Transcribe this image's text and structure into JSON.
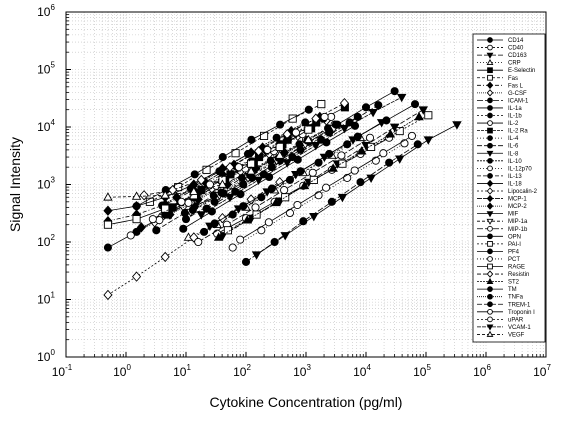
{
  "chart_data": {
    "type": "scatter",
    "title": "",
    "xlabel": "Cytokine Concentration (pg/ml)",
    "ylabel": "Signal Intensity",
    "xscale": "log",
    "yscale": "log",
    "xlim": [
      0.1,
      10000000
    ],
    "ylim": [
      1,
      1000000
    ],
    "grid": true,
    "legend_position": "right",
    "x_tick_labels": [
      {
        "base": "10",
        "exp": "-1"
      },
      {
        "base": "10",
        "exp": "0"
      },
      {
        "base": "10",
        "exp": "1"
      },
      {
        "base": "10",
        "exp": "2"
      },
      {
        "base": "10",
        "exp": "3"
      },
      {
        "base": "10",
        "exp": "4"
      },
      {
        "base": "10",
        "exp": "5"
      },
      {
        "base": "10",
        "exp": "6"
      },
      {
        "base": "10",
        "exp": "7"
      }
    ],
    "y_tick_labels": [
      {
        "base": "10",
        "exp": "0"
      },
      {
        "base": "10",
        "exp": "1"
      },
      {
        "base": "10",
        "exp": "2"
      },
      {
        "base": "10",
        "exp": "3"
      },
      {
        "base": "10",
        "exp": "4"
      },
      {
        "base": "10",
        "exp": "5"
      },
      {
        "base": "10",
        "exp": "6"
      }
    ],
    "series": [
      {
        "name": "CD14",
        "marker": "circle",
        "filled": true,
        "dash": "",
        "x": [
          14,
          42,
          126,
          370,
          1111,
          3333,
          10000,
          30000
        ],
        "y": [
          420,
          700,
          1300,
          2600,
          5500,
          11000,
          22000,
          42000
        ]
      },
      {
        "name": "CD40",
        "marker": "circle",
        "filled": false,
        "dash": "2,2",
        "x": [
          4,
          12,
          37,
          111,
          333,
          1000,
          3000
        ],
        "y": [
          280,
          500,
          900,
          1700,
          3200,
          6000,
          11000
        ]
      },
      {
        "name": "CD163",
        "marker": "triangle-down",
        "filled": true,
        "dash": "5,2",
        "x": [
          41,
          123,
          370,
          1111,
          3333,
          10000,
          30000,
          90000
        ],
        "y": [
          130,
          260,
          520,
          1100,
          2300,
          4800,
          10000,
          20000
        ]
      },
      {
        "name": "CRP",
        "marker": "triangle-up",
        "filled": false,
        "dash": "1,2",
        "x": [
          11,
          33,
          100,
          300,
          900,
          2700,
          8100
        ],
        "y": [
          120,
          200,
          400,
          800,
          1600,
          3200,
          6500
        ]
      },
      {
        "name": "E-Selectin",
        "marker": "square",
        "filled": true,
        "dash": "",
        "x": [
          6,
          18,
          55,
          165,
          494,
          1481,
          4444
        ],
        "y": [
          400,
          800,
          1500,
          3000,
          6000,
          12000,
          22000
        ]
      },
      {
        "name": "Fas",
        "marker": "square",
        "filled": false,
        "dash": "3,2",
        "x": [
          2.5,
          7.4,
          22,
          67,
          200,
          600,
          1800
        ],
        "y": [
          500,
          900,
          1800,
          3500,
          7000,
          14000,
          25000
        ]
      },
      {
        "name": "Fas L",
        "marker": "diamond",
        "filled": true,
        "dash": "4,2,1,2",
        "x": [
          0.5,
          1.5,
          4.5,
          13.5,
          40.5
        ],
        "y": [
          230,
          300,
          450,
          800,
          1500
        ]
      },
      {
        "name": "G-CSF",
        "marker": "diamond",
        "filled": false,
        "dash": "1,1",
        "x": [
          3,
          9,
          27,
          81,
          243,
          729,
          2187
        ],
        "y": [
          220,
          420,
          850,
          1700,
          3400,
          7000,
          13000
        ]
      },
      {
        "name": "ICAM-1",
        "marker": "circle",
        "filled": true,
        "dash": "6,2",
        "x": [
          100,
          300,
          900,
          2700,
          8100,
          24300,
          72900
        ],
        "y": [
          45,
          100,
          230,
          500,
          1100,
          2400,
          5000
        ]
      },
      {
        "name": "IL-1a",
        "marker": "circle",
        "filled": true,
        "dash": "",
        "x": [
          1.5,
          4.6,
          14,
          41,
          123,
          370,
          1111
        ],
        "y": [
          420,
          800,
          1500,
          3000,
          6000,
          11000,
          20000
        ]
      },
      {
        "name": "IL-1b",
        "marker": "circle",
        "filled": true,
        "dash": "2,2",
        "x": [
          20,
          60,
          180,
          540,
          1620,
          4860
        ],
        "y": [
          150,
          300,
          600,
          1200,
          2400,
          5000
        ]
      },
      {
        "name": "IL-2",
        "marker": "circle",
        "filled": false,
        "dash": "",
        "x": [
          33,
          100,
          300,
          900,
          2700,
          8100,
          24300
        ],
        "y": [
          140,
          260,
          500,
          950,
          1800,
          3400,
          6500
        ]
      },
      {
        "name": "IL-2 Ra",
        "marker": "square",
        "filled": true,
        "dash": "3,1",
        "x": [
          5,
          15,
          45,
          135,
          405,
          1215
        ],
        "y": [
          300,
          600,
          1200,
          2500,
          5000,
          9500
        ]
      },
      {
        "name": "IL-4",
        "marker": "circle",
        "filled": true,
        "dash": "1,2",
        "x": [
          8,
          24,
          72,
          216,
          648,
          1944
        ],
        "y": [
          500,
          1000,
          2000,
          4000,
          8000,
          14000
        ]
      },
      {
        "name": "IL-6",
        "marker": "circle",
        "filled": true,
        "dash": "5,2",
        "x": [
          3.2,
          9.6,
          29,
          86,
          259,
          778,
          2333
        ],
        "y": [
          160,
          320,
          650,
          1300,
          2600,
          5000,
          9500
        ]
      },
      {
        "name": "IL-8",
        "marker": "triangle-down",
        "filled": true,
        "dash": "",
        "x": [
          25,
          75,
          225,
          675,
          2025,
          6075,
          18225
        ],
        "y": [
          190,
          380,
          750,
          1500,
          3000,
          6000,
          12000
        ]
      },
      {
        "name": "IL-10",
        "marker": "circle",
        "filled": true,
        "dash": "2,1",
        "x": [
          4,
          12,
          36,
          108,
          324,
          972
        ],
        "y": [
          430,
          850,
          1700,
          3400,
          6500,
          12000
        ]
      },
      {
        "name": "IL-12p70",
        "marker": "circle",
        "filled": false,
        "dash": "1,2",
        "x": [
          60,
          180,
          540,
          1620,
          4860,
          14580,
          43740
        ],
        "y": [
          80,
          160,
          320,
          650,
          1300,
          2600,
          5200
        ]
      },
      {
        "name": "IL-13",
        "marker": "circle",
        "filled": true,
        "dash": "4,2",
        "x": [
          10,
          30,
          90,
          270,
          810,
          2430,
          7290
        ],
        "y": [
          250,
          500,
          1000,
          2000,
          4000,
          8000,
          15000
        ]
      },
      {
        "name": "IL-18",
        "marker": "diamond",
        "filled": true,
        "dash": "",
        "x": [
          0.5,
          1.5,
          4.5,
          13.5,
          40.5,
          121.5
        ],
        "y": [
          350,
          420,
          600,
          1000,
          1900,
          3600
        ]
      },
      {
        "name": "Lipocalin-2",
        "marker": "diamond",
        "filled": false,
        "dash": "2,2",
        "x": [
          0.5,
          1.5,
          4.5,
          13.5,
          40.5,
          121.5,
          364.5
        ],
        "y": [
          12,
          25,
          55,
          120,
          260,
          550,
          1100
        ]
      },
      {
        "name": "MCP-1",
        "marker": "diamond",
        "filled": true,
        "dash": "5,1",
        "x": [
          7,
          21,
          63,
          189,
          567,
          1701
        ],
        "y": [
          600,
          1100,
          2200,
          4400,
          8500,
          15000
        ]
      },
      {
        "name": "MCP-2",
        "marker": "diamond",
        "filled": true,
        "dash": "1,1",
        "x": [
          1.8,
          5.4,
          16,
          49,
          146,
          437
        ],
        "y": [
          180,
          300,
          550,
          1000,
          1900,
          3600
        ]
      },
      {
        "name": "MIF",
        "marker": "triangle-down",
        "filled": true,
        "dash": "",
        "x": [
          150,
          450,
          1350,
          4050,
          12150,
          36450,
          109350,
          328050
        ],
        "y": [
          60,
          130,
          280,
          600,
          1300,
          2800,
          6000,
          11000
        ]
      },
      {
        "name": "MIP-1a",
        "marker": "triangle-down",
        "filled": false,
        "dash": "3,2",
        "x": [
          12,
          36,
          108,
          324,
          972,
          2916
        ],
        "y": [
          330,
          650,
          1300,
          2600,
          5000,
          9500
        ]
      },
      {
        "name": "MIP-1b",
        "marker": "circle",
        "filled": false,
        "dash": "6,2",
        "x": [
          16,
          48,
          144,
          432,
          1296,
          3888,
          11664
        ],
        "y": [
          100,
          200,
          400,
          800,
          1600,
          3200,
          6500
        ]
      },
      {
        "name": "OPN",
        "marker": "circle",
        "filled": true,
        "dash": "",
        "x": [
          30,
          90,
          270,
          810,
          2430,
          7290,
          21870,
          65610
        ],
        "y": [
          210,
          420,
          850,
          1700,
          3400,
          6800,
          13000,
          25000
        ]
      },
      {
        "name": "PAI-I",
        "marker": "square",
        "filled": false,
        "dash": "2,2",
        "x": [
          50,
          150,
          450,
          1350,
          4050,
          12150,
          36450,
          109350
        ],
        "y": [
          160,
          300,
          600,
          1200,
          2300,
          4500,
          8500,
          16000
        ]
      },
      {
        "name": "PF4",
        "marker": "circle",
        "filled": true,
        "dash": "",
        "x": [
          0.5,
          1.5,
          4.5,
          13.5,
          40.5,
          121.5,
          364.5
        ],
        "y": [
          80,
          150,
          300,
          600,
          1200,
          2500,
          5000
        ]
      },
      {
        "name": "PCT",
        "marker": "circle",
        "filled": false,
        "dash": "1,2",
        "x": [
          1.2,
          3.6,
          11,
          32,
          97,
          292,
          875,
          2625
        ],
        "y": [
          130,
          240,
          480,
          950,
          1900,
          3800,
          7500,
          15000
        ]
      },
      {
        "name": "RAGE",
        "marker": "square",
        "filled": false,
        "dash": "",
        "x": [
          0.5,
          1.5,
          4.5,
          13.5,
          40.5,
          121.5,
          364.5,
          1093.5
        ],
        "y": [
          200,
          250,
          380,
          650,
          1200,
          2300,
          4500,
          9000
        ]
      },
      {
        "name": "Resistin",
        "marker": "diamond",
        "filled": false,
        "dash": "4,2",
        "x": [
          2,
          6,
          18,
          54,
          162,
          486,
          1458,
          4374
        ],
        "y": [
          650,
          800,
          1200,
          2000,
          3800,
          7500,
          14000,
          26000
        ]
      },
      {
        "name": "ST2",
        "marker": "triangle-up",
        "filled": true,
        "dash": "2,1",
        "x": [
          35,
          105,
          315,
          945,
          2835,
          8505,
          25515,
          76545
        ],
        "y": [
          120,
          240,
          480,
          950,
          1900,
          3800,
          7500,
          15000
        ]
      },
      {
        "name": "TM",
        "marker": "circle",
        "filled": true,
        "dash": "",
        "x": [
          9,
          27,
          81,
          243,
          729,
          2187,
          6561
        ],
        "y": [
          170,
          340,
          680,
          1350,
          2700,
          5400,
          10500
        ]
      },
      {
        "name": "TNFa",
        "marker": "circle",
        "filled": true,
        "dash": "1,1",
        "x": [
          13,
          39,
          117,
          351,
          1053,
          3159
        ],
        "y": [
          360,
          720,
          1450,
          2900,
          5800,
          11000
        ]
      },
      {
        "name": "TREM-1",
        "marker": "circle",
        "filled": true,
        "dash": "5,2",
        "x": [
          22,
          66,
          198,
          594,
          1782,
          5346,
          16038
        ],
        "y": [
          380,
          750,
          1500,
          3000,
          6000,
          12000,
          24000
        ]
      },
      {
        "name": "Troponin I",
        "marker": "circle",
        "filled": false,
        "dash": "",
        "x": [
          80,
          240,
          720,
          2160,
          6480,
          19440,
          58320
        ],
        "y": [
          110,
          220,
          440,
          880,
          1750,
          3500,
          7000
        ]
      },
      {
        "name": "uPAR",
        "marker": "circle",
        "filled": false,
        "dash": "2,2",
        "x": [
          2.8,
          8.4,
          25,
          76,
          227,
          680,
          2041
        ],
        "y": [
          250,
          500,
          1000,
          2000,
          4000,
          8000,
          15000
        ]
      },
      {
        "name": "VCAM-1",
        "marker": "triangle-down",
        "filled": true,
        "dash": "4,1",
        "x": [
          18,
          54,
          162,
          486,
          1458,
          4374,
          13122,
          39366
        ],
        "y": [
          300,
          600,
          1200,
          2400,
          4800,
          9500,
          18000,
          33000
        ]
      },
      {
        "name": "VEGF",
        "marker": "triangle-up",
        "filled": false,
        "dash": "3,2",
        "x": [
          0.5,
          1.5,
          4.5,
          13.5,
          40.5,
          121.5,
          364.5,
          1093.5
        ],
        "y": [
          600,
          620,
          650,
          750,
          1000,
          1700,
          3200,
          6000
        ]
      }
    ]
  }
}
